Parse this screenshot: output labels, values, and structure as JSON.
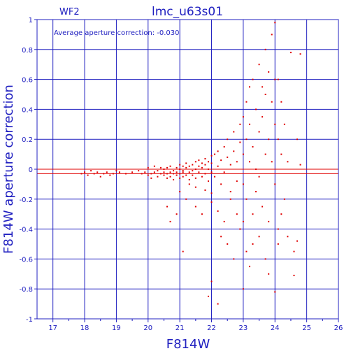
{
  "chart_data": {
    "type": "scatter",
    "chip_label": "WF2",
    "title": "lmc_u63s01",
    "xlabel": "F814W",
    "ylabel": "F814W aperture correction",
    "annotation": "Average aperture correction: -0.030",
    "xlim": [
      16.5,
      26
    ],
    "ylim": [
      -1,
      1
    ],
    "x_ticks": [
      17,
      18,
      19,
      20,
      21,
      22,
      23,
      24,
      25,
      26
    ],
    "y_ticks": [
      -1,
      -0.8,
      -0.6,
      -0.4,
      -0.2,
      0,
      0.2,
      0.4,
      0.6,
      0.8,
      1
    ],
    "y_tick_labels": [
      "-1",
      "-0.8",
      "-0.6",
      "-0.4",
      "-0.2",
      "0",
      "0.2",
      "0.4",
      "0.6",
      "0.8",
      "1"
    ],
    "grid": true,
    "reference_lines": [
      0,
      -0.03
    ],
    "colors": {
      "axes": "#2020c0",
      "points": "#e00000",
      "reference_line": "#e00000"
    },
    "points": [
      [
        17.9,
        -0.03
      ],
      [
        18.0,
        -0.02
      ],
      [
        18.1,
        -0.04
      ],
      [
        18.2,
        -0.01
      ],
      [
        18.3,
        -0.03
      ],
      [
        18.4,
        -0.02
      ],
      [
        18.5,
        -0.05
      ],
      [
        18.6,
        -0.03
      ],
      [
        18.7,
        -0.02
      ],
      [
        18.8,
        -0.04
      ],
      [
        18.9,
        -0.03
      ],
      [
        19.0,
        -0.01
      ],
      [
        19.1,
        -0.02
      ],
      [
        19.3,
        -0.03
      ],
      [
        19.5,
        -0.02
      ],
      [
        19.7,
        -0.01
      ],
      [
        19.8,
        -0.03
      ],
      [
        19.9,
        -0.02
      ],
      [
        20.0,
        -0.04
      ],
      [
        20.0,
        0.01
      ],
      [
        20.1,
        -0.03
      ],
      [
        20.1,
        -0.06
      ],
      [
        20.2,
        -0.02
      ],
      [
        20.2,
        0.02
      ],
      [
        20.3,
        -0.05
      ],
      [
        20.3,
        -0.01
      ],
      [
        20.4,
        -0.03
      ],
      [
        20.4,
        0.01
      ],
      [
        20.5,
        -0.04
      ],
      [
        20.5,
        -0.02
      ],
      [
        20.5,
        0.0
      ],
      [
        20.6,
        -0.06
      ],
      [
        20.6,
        -0.03
      ],
      [
        20.6,
        0.01
      ],
      [
        20.7,
        -0.02
      ],
      [
        20.7,
        -0.05
      ],
      [
        20.7,
        0.02
      ],
      [
        20.8,
        -0.03
      ],
      [
        20.8,
        -0.01
      ],
      [
        20.8,
        -0.07
      ],
      [
        20.9,
        -0.02
      ],
      [
        20.9,
        0.01
      ],
      [
        20.9,
        -0.04
      ],
      [
        21.0,
        0.0
      ],
      [
        21.0,
        -0.03
      ],
      [
        21.0,
        0.03
      ],
      [
        21.0,
        -0.06
      ],
      [
        21.1,
        -0.01
      ],
      [
        21.1,
        0.02
      ],
      [
        21.1,
        -0.05
      ],
      [
        21.1,
        -0.02
      ],
      [
        21.2,
        0.01
      ],
      [
        21.2,
        -0.04
      ],
      [
        21.2,
        0.04
      ],
      [
        21.3,
        -0.02
      ],
      [
        21.3,
        0.02
      ],
      [
        21.3,
        -0.07
      ],
      [
        21.4,
        0.03
      ],
      [
        21.4,
        -0.01
      ],
      [
        21.4,
        -0.04
      ],
      [
        21.5,
        0.05
      ],
      [
        21.5,
        0.0
      ],
      [
        21.5,
        -0.06
      ],
      [
        21.6,
        0.02
      ],
      [
        21.6,
        -0.02
      ],
      [
        21.6,
        0.06
      ],
      [
        21.7,
        0.01
      ],
      [
        21.7,
        -0.05
      ],
      [
        21.7,
        0.04
      ],
      [
        21.8,
        0.03
      ],
      [
        21.8,
        -0.03
      ],
      [
        21.8,
        0.07
      ],
      [
        21.9,
        0.0
      ],
      [
        21.9,
        0.05
      ],
      [
        21.9,
        -0.08
      ],
      [
        22.0,
        0.04
      ],
      [
        22.0,
        0.09
      ],
      [
        22.0,
        -0.02
      ],
      [
        21.3,
        -0.1
      ],
      [
        21.5,
        -0.12
      ],
      [
        21.8,
        -0.14
      ],
      [
        22.0,
        -0.16
      ],
      [
        22.1,
        0.1
      ],
      [
        22.1,
        -0.05
      ],
      [
        22.2,
        0.12
      ],
      [
        22.2,
        0.02
      ],
      [
        22.3,
        0.06
      ],
      [
        22.3,
        -0.1
      ],
      [
        22.4,
        0.15
      ],
      [
        22.4,
        -0.02
      ],
      [
        22.5,
        0.08
      ],
      [
        22.5,
        0.2
      ],
      [
        22.6,
        0.03
      ],
      [
        22.6,
        -0.15
      ],
      [
        22.7,
        0.12
      ],
      [
        22.7,
        0.25
      ],
      [
        22.8,
        0.05
      ],
      [
        22.8,
        -0.08
      ],
      [
        22.9,
        0.18
      ],
      [
        22.9,
        0.3
      ],
      [
        22.0,
        -0.22
      ],
      [
        22.2,
        -0.28
      ],
      [
        22.4,
        -0.35
      ],
      [
        22.6,
        -0.2
      ],
      [
        22.8,
        -0.3
      ],
      [
        22.3,
        -0.45
      ],
      [
        21.7,
        -0.3
      ],
      [
        21.5,
        -0.25
      ],
      [
        21.2,
        -0.2
      ],
      [
        21.0,
        -0.15
      ],
      [
        22.5,
        -0.5
      ],
      [
        22.9,
        -0.4
      ],
      [
        22.7,
        -0.6
      ],
      [
        22.0,
        -0.75
      ],
      [
        22.2,
        -0.9
      ],
      [
        21.9,
        -0.85
      ],
      [
        21.1,
        -0.55
      ],
      [
        20.9,
        -0.3
      ],
      [
        20.7,
        -0.35
      ],
      [
        20.6,
        -0.25
      ],
      [
        23.0,
        0.35
      ],
      [
        23.0,
        0.1
      ],
      [
        23.0,
        -0.1
      ],
      [
        23.1,
        0.45
      ],
      [
        23.1,
        0.2
      ],
      [
        23.1,
        -0.2
      ],
      [
        23.2,
        0.55
      ],
      [
        23.2,
        0.3
      ],
      [
        23.2,
        0.05
      ],
      [
        23.3,
        0.15
      ],
      [
        23.3,
        -0.3
      ],
      [
        23.3,
        0.6
      ],
      [
        23.4,
        0.4
      ],
      [
        23.4,
        0.0
      ],
      [
        23.4,
        -0.15
      ],
      [
        23.5,
        0.25
      ],
      [
        23.5,
        0.7
      ],
      [
        23.5,
        -0.05
      ],
      [
        23.6,
        0.35
      ],
      [
        23.6,
        0.55
      ],
      [
        23.6,
        -0.25
      ],
      [
        23.7,
        0.5
      ],
      [
        23.7,
        0.8
      ],
      [
        23.7,
        0.1
      ],
      [
        23.8,
        0.2
      ],
      [
        23.8,
        0.65
      ],
      [
        23.8,
        -0.35
      ],
      [
        23.9,
        0.45
      ],
      [
        23.9,
        0.05
      ],
      [
        23.9,
        0.9
      ],
      [
        24.0,
        0.6
      ],
      [
        24.0,
        0.3
      ],
      [
        24.0,
        -0.1
      ],
      [
        24.0,
        0.98
      ],
      [
        24.1,
        0.6
      ],
      [
        24.1,
        0.2
      ],
      [
        24.1,
        -0.5
      ],
      [
        24.2,
        0.45
      ],
      [
        24.2,
        0.1
      ],
      [
        24.3,
        0.3
      ],
      [
        24.3,
        -0.2
      ],
      [
        23.0,
        -0.35
      ],
      [
        23.1,
        -0.55
      ],
      [
        23.2,
        -0.65
      ],
      [
        23.0,
        -0.8
      ],
      [
        23.3,
        -0.5
      ],
      [
        23.5,
        -0.45
      ],
      [
        23.7,
        -0.6
      ],
      [
        23.8,
        -0.7
      ],
      [
        24.0,
        -0.82
      ],
      [
        24.1,
        -0.4
      ],
      [
        24.2,
        -0.3
      ],
      [
        24.4,
        -0.45
      ],
      [
        24.6,
        -0.55
      ],
      [
        24.7,
        -0.48
      ],
      [
        24.6,
        -0.71
      ],
      [
        24.5,
        0.78
      ],
      [
        24.8,
        0.77
      ],
      [
        24.7,
        0.2
      ],
      [
        24.8,
        0.03
      ],
      [
        24.4,
        0.05
      ]
    ]
  }
}
